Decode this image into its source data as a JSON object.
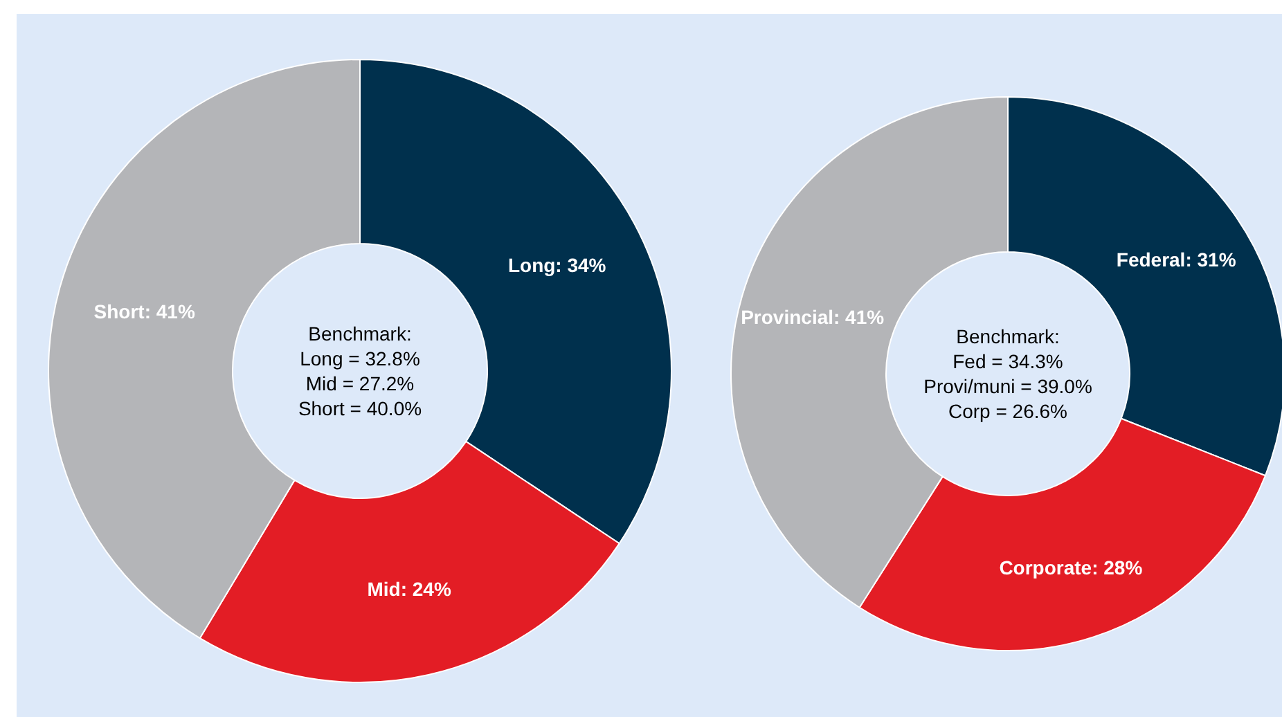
{
  "chart_data": [
    {
      "type": "donut",
      "categories": [
        "Long",
        "Mid",
        "Short"
      ],
      "values": [
        34,
        24,
        41
      ],
      "value_labels": [
        "34%",
        "24%",
        "41%"
      ],
      "colors": [
        "#00304d",
        "#e31d25",
        "#b4b5b8"
      ],
      "annotations": [
        "Benchmark:\nLong = 32.8%\nMid = 27.2%\nShort = 40.0%"
      ],
      "legend": false
    },
    {
      "type": "donut",
      "categories": [
        "Federal",
        "Corporate",
        "Provincial"
      ],
      "values": [
        31,
        28,
        41
      ],
      "value_labels": [
        "31%",
        "28%",
        "41%"
      ],
      "colors": [
        "#00304d",
        "#e31d25",
        "#b4b5b8"
      ],
      "annotations": [
        "Benchmark:\nFed = 34.3%\nProvi/muni = 39.0%\nCorp = 26.6%"
      ],
      "legend": false
    }
  ]
}
